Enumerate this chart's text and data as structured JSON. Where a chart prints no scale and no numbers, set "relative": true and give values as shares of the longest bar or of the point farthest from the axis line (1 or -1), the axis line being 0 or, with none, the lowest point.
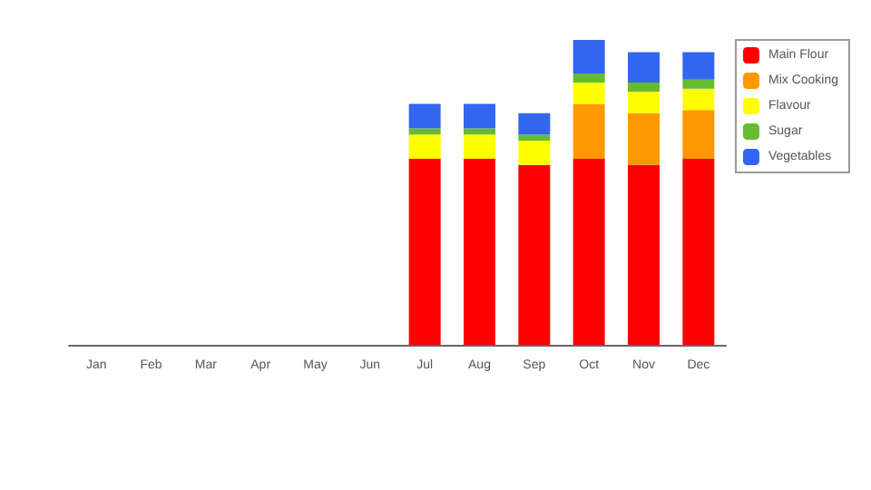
{
  "chart_data": {
    "type": "bar",
    "stacked": true,
    "relative": true,
    "legend": "top right",
    "categories": [
      "Jan",
      "Feb",
      "Mar",
      "Apr",
      "May",
      "Jun",
      "Jul",
      "Aug",
      "Sep",
      "Oct",
      "Nov",
      "Dec"
    ],
    "series": [
      {
        "name": "Main Flour",
        "color": "#ff0000",
        "values": [
          0,
          0,
          0,
          0,
          0,
          0,
          0.61,
          0.61,
          0.59,
          0.61,
          0.59,
          0.61
        ]
      },
      {
        "name": "Mix Cooking",
        "color": "#ff9900",
        "values": [
          0,
          0,
          0,
          0,
          0,
          0,
          0,
          0,
          0,
          0.18,
          0.17,
          0.16
        ]
      },
      {
        "name": "Flavour",
        "color": "#ffff00",
        "values": [
          0,
          0,
          0,
          0,
          0,
          0,
          0.08,
          0.08,
          0.08,
          0.07,
          0.07,
          0.07
        ]
      },
      {
        "name": "Sugar",
        "color": "#66bb33",
        "values": [
          0,
          0,
          0,
          0,
          0,
          0,
          0.02,
          0.02,
          0.02,
          0.03,
          0.03,
          0.03
        ]
      },
      {
        "name": "Vegetables",
        "color": "#3366ee",
        "values": [
          0,
          0,
          0,
          0,
          0,
          0,
          0.08,
          0.08,
          0.07,
          0.11,
          0.1,
          0.09
        ]
      }
    ]
  }
}
